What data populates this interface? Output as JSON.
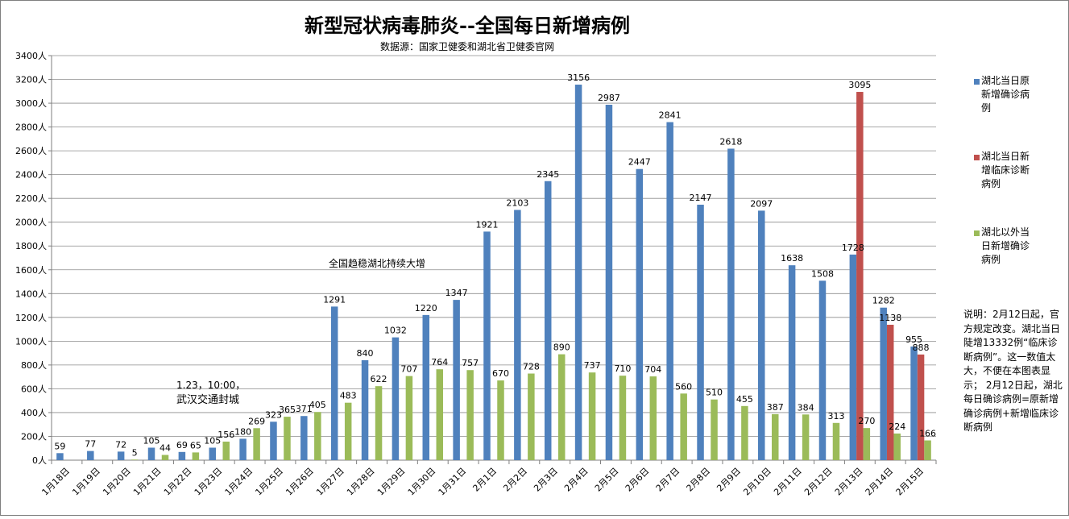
{
  "chart_data": {
    "type": "bar",
    "title": "新型冠状病毒肺炎--全国每日新增病例",
    "subtitle": "数据源：国家卫健委和湖北省卫健委官网",
    "categories": [
      "1月18日",
      "1月19日",
      "1月20日",
      "1月21日",
      "1月22日",
      "1月23日",
      "1月24日",
      "1月25日",
      "1月26日",
      "1月27日",
      "1月28日",
      "1月29日",
      "1月30日",
      "1月31日",
      "2月1日",
      "2月2日",
      "2月3日",
      "2月4日",
      "2月5日",
      "2月6日",
      "2月7日",
      "2月8日",
      "2月9日",
      "2月10日",
      "2月11日",
      "2月12日",
      "2月13日",
      "2月14日",
      "2月15日"
    ],
    "y_tick_labels": [
      "0人",
      "200人",
      "400人",
      "600人",
      "800人",
      "1000人",
      "1200人",
      "1400人",
      "1600人",
      "1800人",
      "2000人",
      "2200人",
      "2400人",
      "2600人",
      "2800人",
      "3000人",
      "3200人",
      "3400人"
    ],
    "ylim": [
      0,
      3400
    ],
    "grid": true,
    "legend_position": "right",
    "series": [
      {
        "name": "湖北当日原新增确诊病例",
        "color": "#4F81BD",
        "values": [
          59,
          77,
          72,
          105,
          69,
          105,
          180,
          323,
          371,
          1291,
          840,
          1032,
          1220,
          1347,
          1921,
          2103,
          2345,
          3156,
          2987,
          2447,
          2841,
          2147,
          2618,
          2097,
          1638,
          1508,
          1728,
          1282,
          955
        ]
      },
      {
        "name": "湖北当日新增临床诊断病例",
        "color": "#C0504D",
        "values": [
          null,
          null,
          null,
          null,
          null,
          null,
          null,
          null,
          null,
          null,
          null,
          null,
          null,
          null,
          null,
          null,
          null,
          null,
          null,
          null,
          null,
          null,
          null,
          null,
          null,
          null,
          3095,
          1138,
          888
        ]
      },
      {
        "name": "湖北以外当日新增确诊病例",
        "color": "#9BBB59",
        "values": [
          null,
          null,
          5,
          44,
          65,
          156,
          269,
          365,
          405,
          483,
          622,
          707,
          764,
          757,
          670,
          728,
          890,
          737,
          710,
          704,
          560,
          510,
          455,
          387,
          384,
          313,
          270,
          224,
          166
        ]
      }
    ],
    "annotations": [
      {
        "text": "1.23，10:00，",
        "anchor": "1月23日"
      },
      {
        "text": "武汉交通封城",
        "anchor": "1月23日"
      },
      {
        "text": "全国趋稳湖北持续大增",
        "anchor": "1月29日"
      }
    ],
    "note": "说明：2月12日起，官方规定改变。湖北当日陡增13332例“临床诊断病例”。这一数值太大，不便在本图表显示； 2月12日起，湖北每日确诊病例=原新增确诊病例+新增临床诊断病例"
  }
}
